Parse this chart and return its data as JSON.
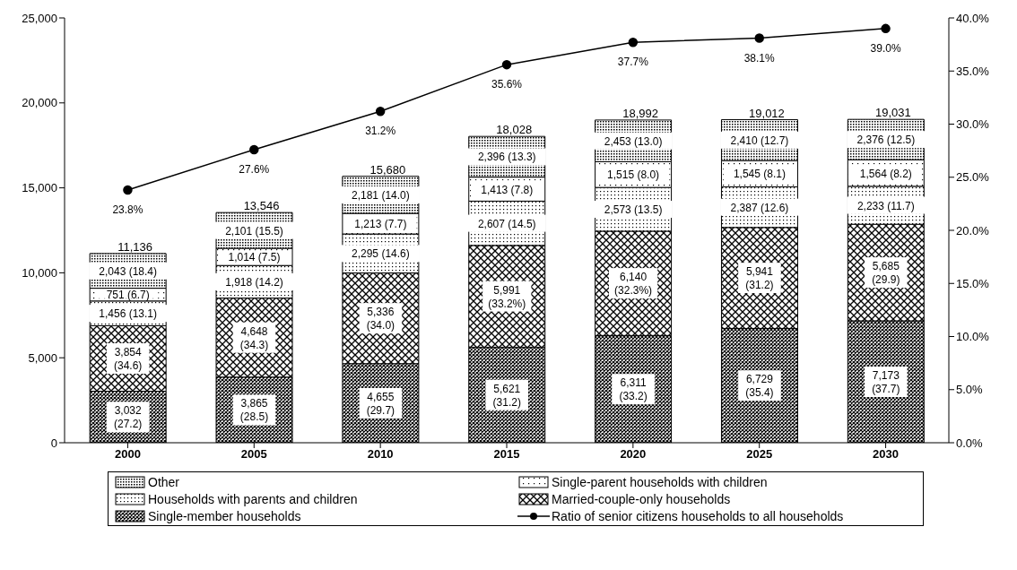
{
  "chart_data": {
    "type": "bar",
    "stacked": true,
    "categories": [
      "2000",
      "2005",
      "2010",
      "2015",
      "2020",
      "2025",
      "2030"
    ],
    "series": [
      {
        "name": "Single-member households",
        "color": "#000000",
        "values": [
          3032,
          3865,
          4655,
          5621,
          6311,
          6729,
          7173
        ],
        "value_labels": [
          "3,032 (27.2)",
          "3,865 (28.5)",
          "4,655 (29.7)",
          "5,621 (31.2)",
          "6,311 (33.2)",
          "6,729 (35.4)",
          "7,173 (37.7)"
        ]
      },
      {
        "name": "Married-couple-only households",
        "color": "#000000",
        "values": [
          3854,
          4648,
          5336,
          5991,
          6140,
          5941,
          5685
        ],
        "value_labels": [
          "3,854 (34.6)",
          "4,648 (34.3)",
          "5,336 (34.0)",
          "5,991 (33.2%)",
          "6,140 (32.3%)",
          "5,941 (31.2)",
          "5,685 (29.9)"
        ]
      },
      {
        "name": "Households with parents and children",
        "color": "#000000",
        "values": [
          1456,
          1918,
          2295,
          2607,
          2573,
          2387,
          2233
        ],
        "value_labels": [
          "1,456 (13.1)",
          "1,918 (14.2)",
          "2,295 (14.6)",
          "2,607 (14.5)",
          "2,573 (13.5)",
          "2,387 (12.6)",
          "2,233 (11.7)"
        ]
      },
      {
        "name": "Single-parent households with children",
        "color": "#000000",
        "values": [
          751,
          1014,
          1213,
          1413,
          1515,
          1545,
          1564
        ],
        "value_labels": [
          "751 (6.7)",
          "1,014 (7.5)",
          "1,213 (7.7)",
          "1,413 (7.8)",
          "1,515 (8.0)",
          "1,545 (8.1)",
          "1,564 (8.2)"
        ]
      },
      {
        "name": "Other",
        "color": "#000000",
        "values": [
          2043,
          2101,
          2181,
          2396,
          2453,
          2410,
          2376
        ],
        "value_labels": [
          "2,043 (18.4)",
          "2,101 (15.5)",
          "2,181 (14.0)",
          "2,396 (13.3)",
          "2,453 (13.0)",
          "2,410 (12.7)",
          "2,376 (12.5)"
        ]
      },
      {
        "name": "Ratio of senior citizens households to all households",
        "type": "line",
        "axis": "y2",
        "color": "#000000",
        "marker": "circle",
        "values": [
          23.8,
          27.6,
          31.2,
          35.6,
          37.7,
          38.1,
          39.0
        ],
        "value_labels": [
          "23.8%",
          "27.6%",
          "31.2%",
          "35.6%",
          "37.7%",
          "38.1%",
          "39.0%"
        ]
      }
    ],
    "totals": [
      "11,136",
      "13,546",
      "15,680",
      "18,028",
      "18,992",
      "19,012",
      "19,031"
    ],
    "ylim": [
      0,
      25000
    ],
    "yticks": [
      0,
      {
        "value": 5000,
        "label": "5,000"
      },
      {
        "value": 10000,
        "label": "10,000"
      },
      {
        "value": 15000,
        "label": "15,000"
      },
      {
        "value": 20000,
        "label": "20,000"
      },
      {
        "value": 25000,
        "label": "25,000"
      }
    ],
    "y2lim": [
      0,
      40
    ],
    "y2ticks": [
      {
        "value": 0,
        "label": "0.0%"
      },
      {
        "value": 5,
        "label": "5.0%"
      },
      {
        "value": 10,
        "label": "10.0%"
      },
      {
        "value": 15,
        "label": "15.0%"
      },
      {
        "value": 20,
        "label": "20.0%"
      },
      {
        "value": 25,
        "label": "25.0%"
      },
      {
        "value": 30,
        "label": "30.0%"
      },
      {
        "value": 35,
        "label": "35.0%"
      },
      {
        "value": 40,
        "label": "40.0%"
      }
    ],
    "grid": false,
    "legend": "bottom"
  }
}
